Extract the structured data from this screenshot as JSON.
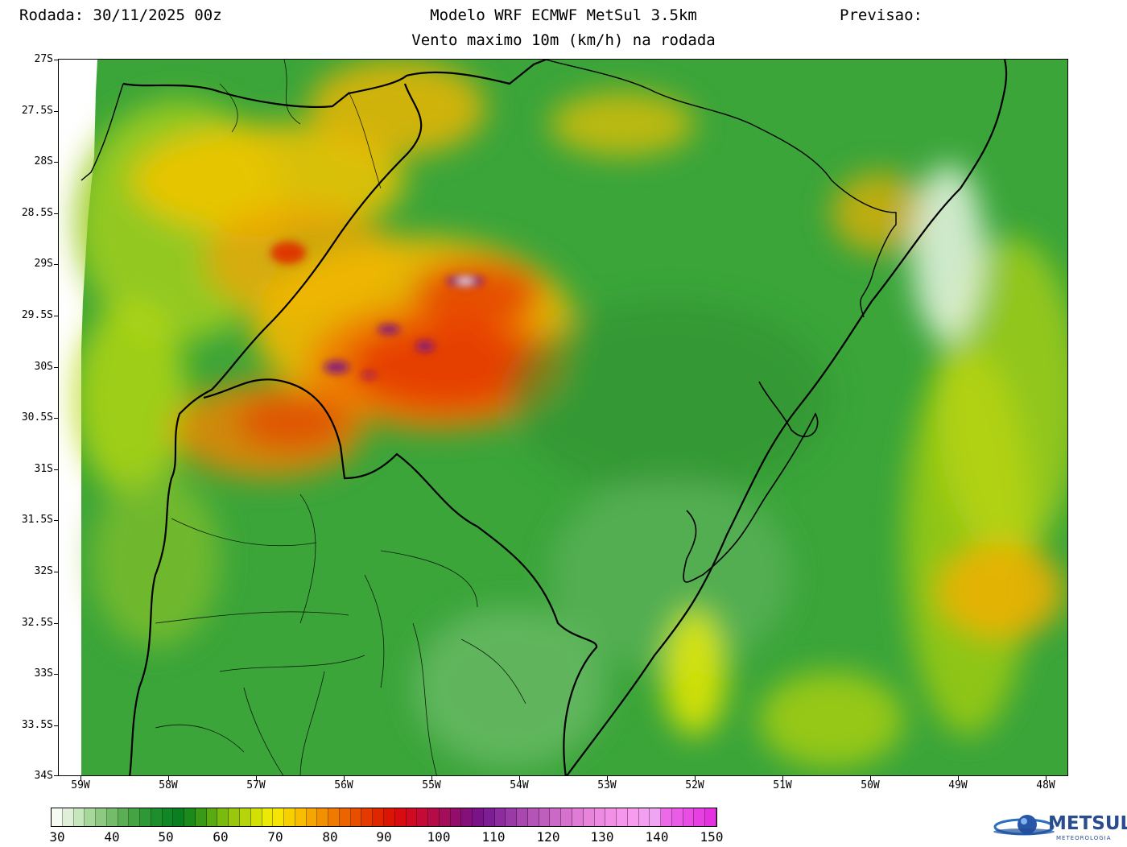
{
  "header": {
    "run_label": "Rodada: 30/11/2025 00z",
    "model_title": "Modelo WRF ECMWF MetSul 3.5km",
    "forecast_label": "Previsao:",
    "subtitle": "Vento maximo 10m (km/h) na rodada"
  },
  "axes": {
    "latitudes": [
      "27S",
      "27.5S",
      "28S",
      "28.5S",
      "29S",
      "29.5S",
      "30S",
      "30.5S",
      "31S",
      "31.5S",
      "32S",
      "32.5S",
      "33S",
      "33.5S",
      "34S"
    ],
    "longitudes": [
      "59W",
      "58W",
      "57W",
      "56W",
      "55W",
      "54W",
      "53W",
      "52W",
      "51W",
      "50W",
      "49W",
      "48W"
    ]
  },
  "colorbar": {
    "labels": [
      "30",
      "40",
      "50",
      "60",
      "70",
      "80",
      "90",
      "100",
      "110",
      "120",
      "130",
      "140",
      "150"
    ],
    "colors": [
      "#f5fbf0",
      "#e0f0d8",
      "#c6e6bc",
      "#a8d79c",
      "#8ec982",
      "#74bc6a",
      "#5aaf54",
      "#44a342",
      "#2f9836",
      "#1e8e2c",
      "#108626",
      "#0a7f20",
      "#1b8a1a",
      "#3a9a16",
      "#5aab12",
      "#7abb0e",
      "#98c70c",
      "#b6d40a",
      "#d2e006",
      "#eaea04",
      "#f6e402",
      "#f8d000",
      "#f8bc00",
      "#f6a600",
      "#f49000",
      "#f07a00",
      "#ec6400",
      "#e84e00",
      "#e43a00",
      "#e02600",
      "#dc1404",
      "#d80c10",
      "#d00a22",
      "#c40a36",
      "#b40c48",
      "#a20e5a",
      "#920e6a",
      "#86107a",
      "#7a1288",
      "#7e1e94",
      "#8c2c9e",
      "#9a3aa6",
      "#a848ae",
      "#b454b6",
      "#c05ebe",
      "#cc68c6",
      "#d672ce",
      "#e07cd6",
      "#e884dc",
      "#ee8ae2",
      "#f290e8",
      "#f696ec",
      "#f89cf0",
      "#f4a0f2",
      "#f0a4f4",
      "#ec6ae8",
      "#ea5ce6",
      "#e84ee4",
      "#e640e2",
      "#e432e0"
    ]
  },
  "logo": {
    "name": "METSUL",
    "tagline": "METEOROLOGIA"
  }
}
